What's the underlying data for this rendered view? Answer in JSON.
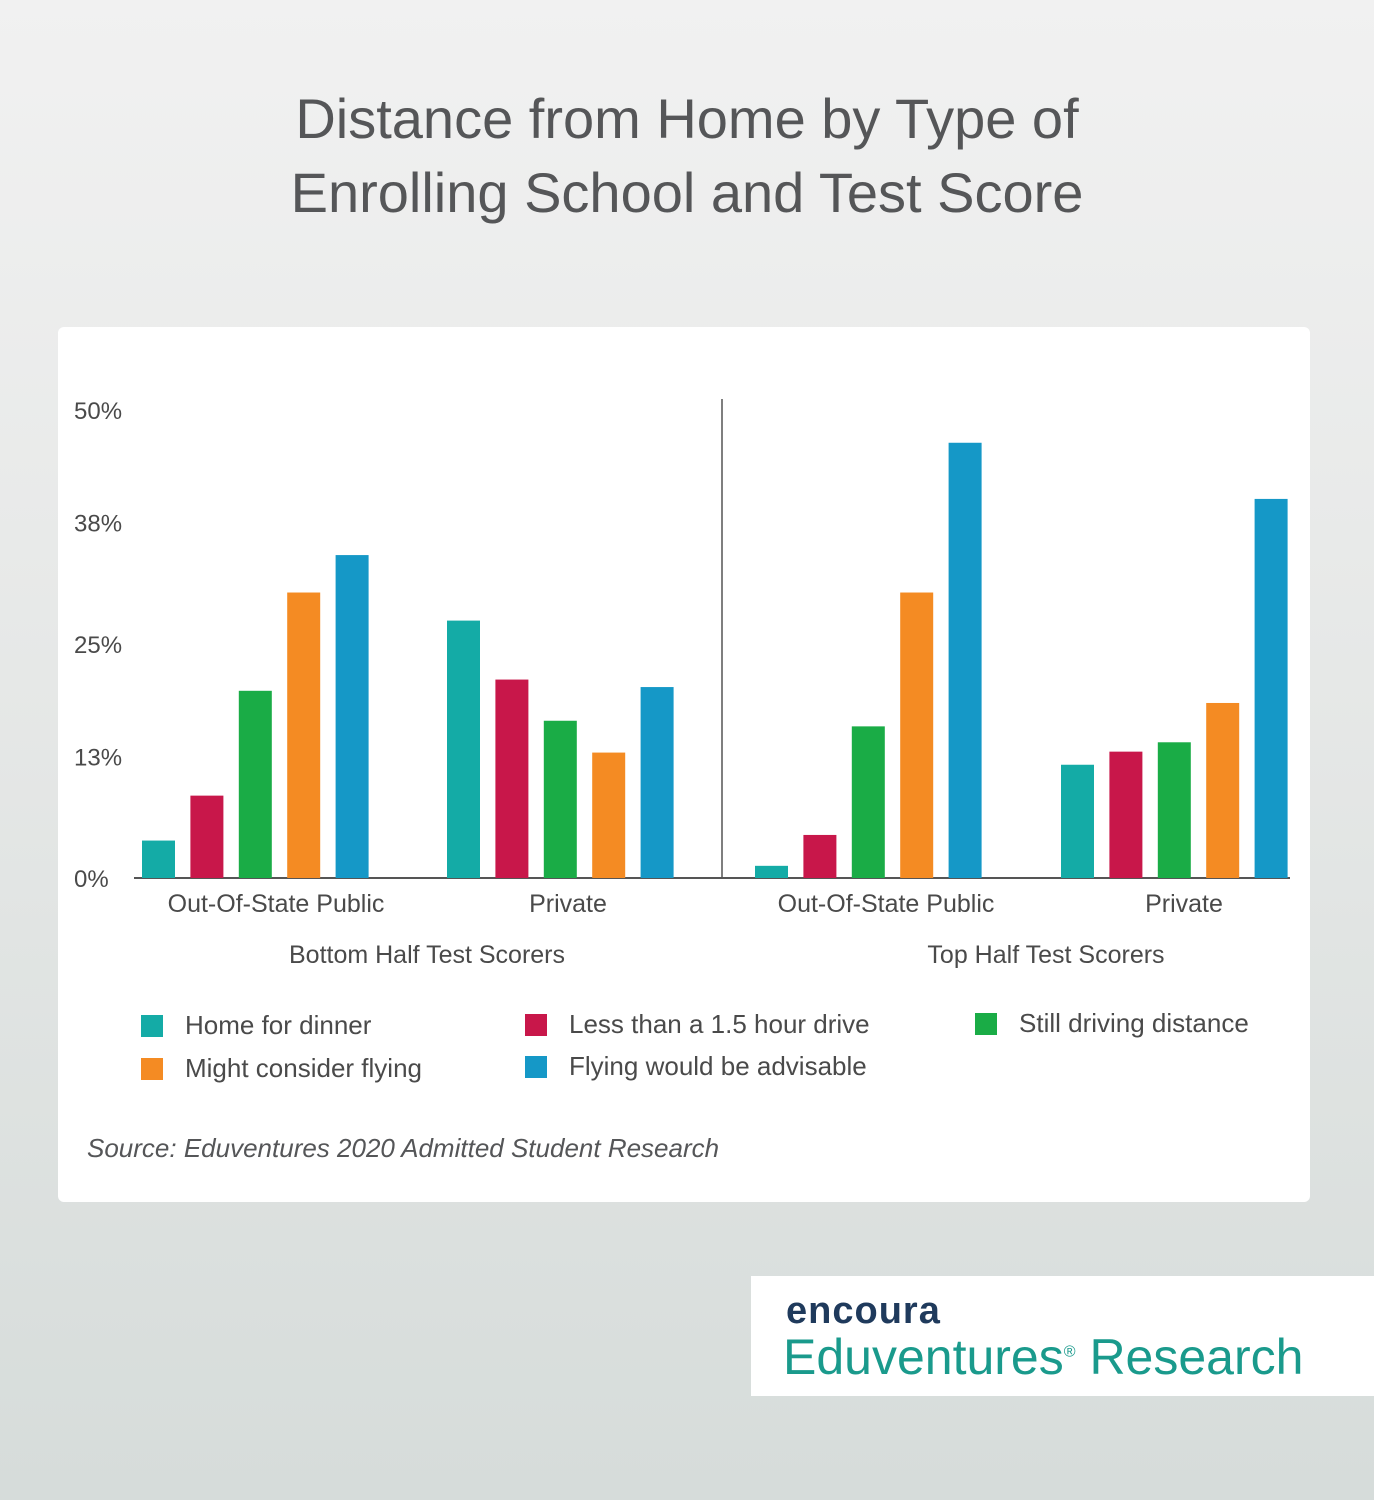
{
  "title_lines": [
    "Distance from Home by Type of",
    "Enrolling School and Test Score"
  ],
  "source": "Source: Eduventures 2020 Admitted Student Research",
  "logo": {
    "brand": "encoura",
    "name": "Eduventures",
    "suffix": "Research"
  },
  "chart_data": {
    "type": "bar",
    "y_ticks": [
      "0%",
      "13%",
      "25%",
      "38%",
      "50%"
    ],
    "ylim": [
      0,
      50
    ],
    "legend_position": "bottom",
    "groups": [
      {
        "label": "Bottom Half Test Scorers",
        "categories": [
          "Out-Of-State Public",
          "Private"
        ],
        "values": [
          [
            4,
            8.8,
            20,
            30.5,
            34.5
          ],
          [
            27.5,
            21.2,
            16.8,
            13.4,
            20.4
          ]
        ]
      },
      {
        "label": "Top Half Test Scorers",
        "categories": [
          "Out-Of-State Public",
          "Private"
        ],
        "values": [
          [
            1.3,
            4.6,
            16.2,
            30.5,
            46.5
          ],
          [
            12.1,
            13.5,
            14.5,
            18.7,
            40.5
          ]
        ]
      }
    ],
    "series": [
      {
        "name": "Home for dinner",
        "color": "#14aba6"
      },
      {
        "name": "Less than a 1.5 hour drive",
        "color": "#c8174a"
      },
      {
        "name": "Still driving distance",
        "color": "#1aac46"
      },
      {
        "name": "Might consider flying",
        "color": "#f48b23"
      },
      {
        "name": "Flying would be advisable",
        "color": "#1598c7"
      }
    ]
  }
}
